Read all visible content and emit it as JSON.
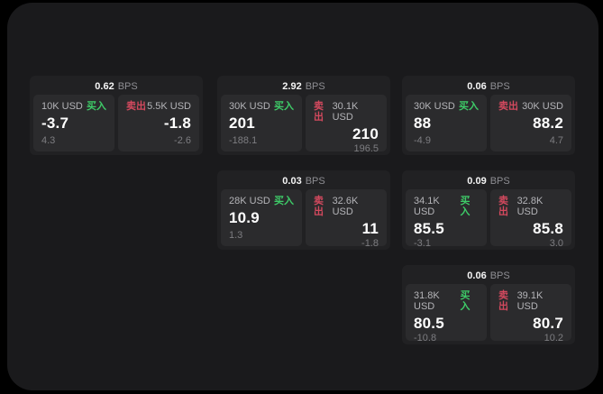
{
  "labels": {
    "bps_unit": "BPS",
    "buy": "买入",
    "sell": "卖出"
  },
  "colors": {
    "background": "#000000",
    "panel": "#1a1a1c",
    "card": "#212123",
    "tile": "#2b2b2d",
    "buy_green": "#3ecb68",
    "sell_red": "#d3495e"
  },
  "cards": [
    {
      "bps": "0.62",
      "grid": {
        "col": 1,
        "row": 1
      },
      "buy": {
        "size": "10K USD",
        "value": "-3.7",
        "delta": "4.3"
      },
      "sell": {
        "size": "5.5K USD",
        "value": "-1.8",
        "delta": "-2.6"
      }
    },
    {
      "bps": "2.92",
      "grid": {
        "col": 2,
        "row": 1
      },
      "buy": {
        "size": "30K USD",
        "value": "201",
        "delta": "-188.1"
      },
      "sell": {
        "size": "30.1K USD",
        "value": "210",
        "delta": "196.5"
      }
    },
    {
      "bps": "0.06",
      "grid": {
        "col": 3,
        "row": 1
      },
      "buy": {
        "size": "30K USD",
        "value": "88",
        "delta": "-4.9"
      },
      "sell": {
        "size": "30K USD",
        "value": "88.2",
        "delta": "4.7"
      }
    },
    {
      "bps": "0.03",
      "grid": {
        "col": 2,
        "row": 2
      },
      "buy": {
        "size": "28K USD",
        "value": "10.9",
        "delta": "1.3"
      },
      "sell": {
        "size": "32.6K USD",
        "value": "11",
        "delta": "-1.8"
      }
    },
    {
      "bps": "0.09",
      "grid": {
        "col": 3,
        "row": 2
      },
      "buy": {
        "size": "34.1K USD",
        "value": "85.5",
        "delta": "-3.1"
      },
      "sell": {
        "size": "32.8K USD",
        "value": "85.8",
        "delta": "3.0"
      }
    },
    {
      "bps": "0.06",
      "grid": {
        "col": 3,
        "row": 3
      },
      "buy": {
        "size": "31.8K USD",
        "value": "80.5",
        "delta": "-10.8"
      },
      "sell": {
        "size": "39.1K USD",
        "value": "80.7",
        "delta": "10.2"
      }
    }
  ]
}
